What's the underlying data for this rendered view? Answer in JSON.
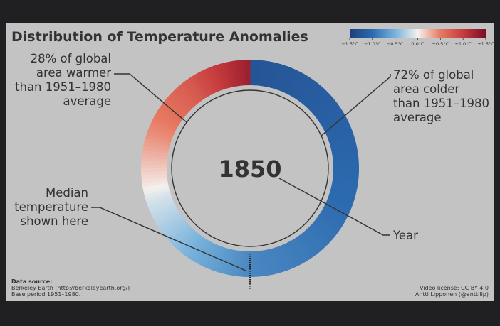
{
  "title": "Distribution of Temperature Anomalies",
  "colorbar": {
    "ticks": [
      "−1.5°C",
      "−1.0°C",
      "−0.5°C",
      "0.0°C",
      "+0.5°C",
      "+1.0°C",
      "+1.5°C"
    ],
    "stops": [
      "#1d3f7c",
      "#2c6aaf",
      "#78b3dc",
      "#f4f1ee",
      "#e77a62",
      "#c63b3d",
      "#7a0e26"
    ]
  },
  "colors": {
    "background": "#c4c3c3",
    "frame": "#202023",
    "text": "#333333"
  },
  "chart_data": {
    "type": "ring",
    "year": "1850",
    "warmer_pct": 28,
    "colder_pct": 72,
    "annotations": {
      "warmer": [
        "28% of global",
        "area warmer",
        "than 1951–1980",
        "average"
      ],
      "colder": [
        "72% of global",
        "area colder",
        "than 1951–1980",
        "average"
      ],
      "median": [
        "Median",
        "temperature",
        "shown here"
      ],
      "year": "Year"
    }
  },
  "footer": {
    "source_heading": "Data source:",
    "source_lines": [
      "Berkeley Earth (http://berkeleyearth.org/)",
      "Base period 1951–1980."
    ],
    "license_lines": [
      "Video license: CC BY 4.0",
      "Antti Lipponen (@anttilip)"
    ]
  }
}
